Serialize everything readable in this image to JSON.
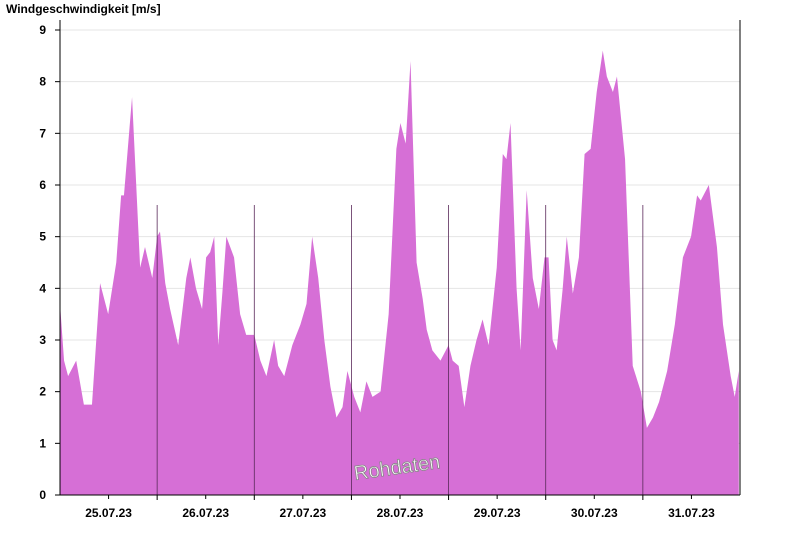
{
  "chart_data": {
    "type": "area",
    "title": "Windgeschwindigkeit [m/s]",
    "watermark": "Rohdaten",
    "x": [
      0,
      1.0,
      2.0,
      4.0,
      5.9,
      7.9,
      9.9,
      11.9,
      13.9,
      15.1,
      15.8,
      17.8,
      19.8,
      21.0,
      22.8,
      24.0,
      24.7,
      26.0,
      27.2,
      29.2,
      31.2,
      32.2,
      33.6,
      35.1,
      36.1,
      37.1,
      38.1,
      39.1,
      40.1,
      41.1,
      43.0,
      44.5,
      46.0,
      48.0,
      49.5,
      51.0,
      52.9,
      53.9,
      55.4,
      57.4,
      59.4,
      60.9,
      62.3,
      63.8,
      65.3,
      66.8,
      68.3,
      69.8,
      71.0,
      72.7,
      74.2,
      75.7,
      77.2,
      79.2,
      81.2,
      83.1,
      84.1,
      85.4,
      86.6,
      88.1,
      89.6,
      90.6,
      92.0,
      94.0,
      96.0,
      97.0,
      98.5,
      99.9,
      101.4,
      102.9,
      104.4,
      105.9,
      107.9,
      109.4,
      110.3,
      111.3,
      112.8,
      113.8,
      115.3,
      116.8,
      118.3,
      119.7,
      120.7,
      121.7,
      122.7,
      124.2,
      125.2,
      126.7,
      128.2,
      129.6,
      131.1,
      132.6,
      134.1,
      135.1,
      136.6,
      137.6,
      139.6,
      141.5,
      143.5,
      145.0,
      146.5,
      148.0,
      150.0,
      151.9,
      153.9,
      155.9,
      157.4,
      158.3,
      160.3,
      162.3,
      163.8,
      165.7,
      166.7,
      167.7
    ],
    "values": [
      3.7,
      2.6,
      2.3,
      2.6,
      1.75,
      1.75,
      4.1,
      3.5,
      4.5,
      5.8,
      5.8,
      7.7,
      4.4,
      4.8,
      4.2,
      5.0,
      5.1,
      4.1,
      3.6,
      2.9,
      4.2,
      4.6,
      4.0,
      3.6,
      4.6,
      4.7,
      5.0,
      2.9,
      3.9,
      5.0,
      4.6,
      3.5,
      3.1,
      3.1,
      2.6,
      2.3,
      3.0,
      2.5,
      2.3,
      2.9,
      3.3,
      3.7,
      5.0,
      4.2,
      3.0,
      2.1,
      1.5,
      1.7,
      2.4,
      1.9,
      1.6,
      2.2,
      1.9,
      2.0,
      3.5,
      6.7,
      7.2,
      6.8,
      8.4,
      4.5,
      3.8,
      3.2,
      2.8,
      2.6,
      2.9,
      2.6,
      2.5,
      1.7,
      2.5,
      3.0,
      3.4,
      2.9,
      4.4,
      6.6,
      6.5,
      7.2,
      4.0,
      2.8,
      5.9,
      4.2,
      3.6,
      4.6,
      4.6,
      3.0,
      2.8,
      4.0,
      5.0,
      3.9,
      4.6,
      6.6,
      6.7,
      7.8,
      8.6,
      8.1,
      7.8,
      8.1,
      6.5,
      2.5,
      2.0,
      1.3,
      1.5,
      1.8,
      2.4,
      3.3,
      4.6,
      5.0,
      5.8,
      5.7,
      6.0,
      4.8,
      3.3,
      2.3,
      1.9,
      2.4
    ],
    "color": "#d66fd6",
    "xlim": [
      0,
      168
    ],
    "xticks": [
      {
        "value": 12,
        "label": "25.07.23"
      },
      {
        "value": 36,
        "label": "26.07.23"
      },
      {
        "value": 60,
        "label": "27.07.23"
      },
      {
        "value": 84,
        "label": "28.07.23"
      },
      {
        "value": 108,
        "label": "29.07.23"
      },
      {
        "value": 132,
        "label": "30.07.23"
      },
      {
        "value": 156,
        "label": "31.07.23"
      }
    ],
    "day_lines": [
      24,
      48,
      72,
      96,
      120,
      144
    ],
    "ylim": [
      0,
      9
    ],
    "yticks": [
      0,
      1,
      2,
      3,
      4,
      5,
      6,
      7,
      8,
      9
    ],
    "grid": true
  }
}
